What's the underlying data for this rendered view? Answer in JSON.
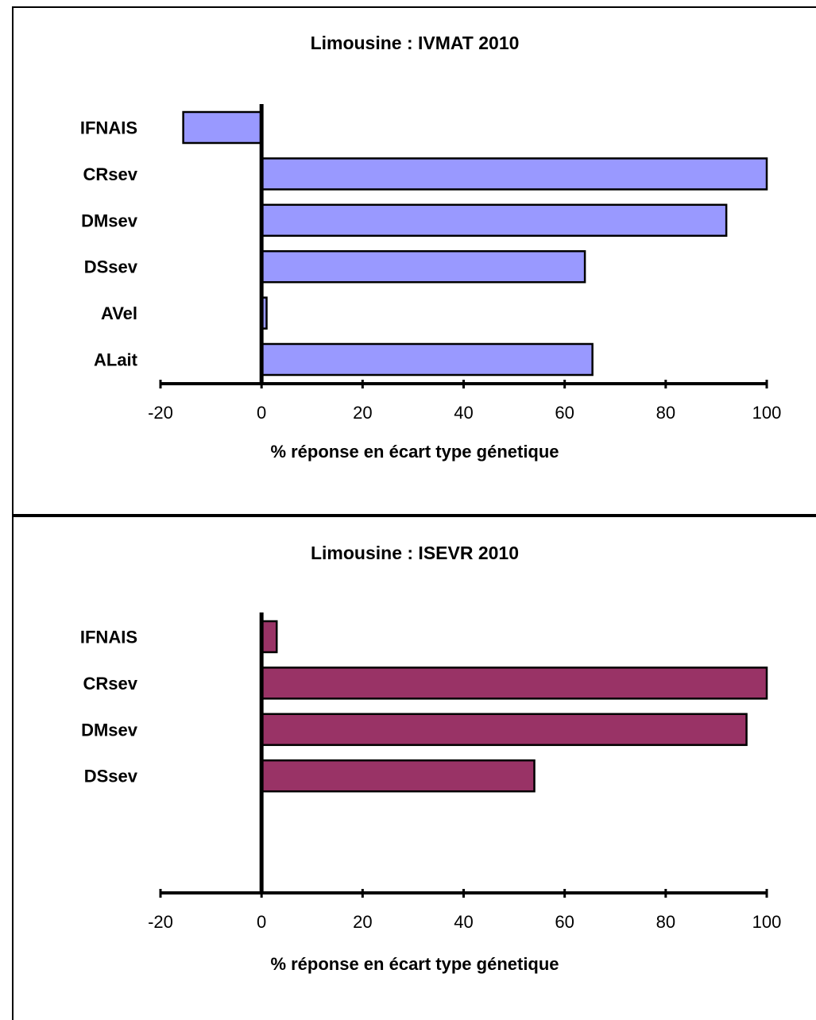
{
  "chart_data": [
    {
      "type": "bar",
      "orientation": "horizontal",
      "title": "Limousine : IVMAT 2010",
      "xlabel": "% réponse en écart type génetique",
      "ylabel": "",
      "categories": [
        "IFNAIS",
        "CRsev",
        "DMsev",
        "DSsev",
        "AVel",
        "ALait"
      ],
      "values": [
        -15.5,
        100,
        92,
        64,
        1,
        65.5
      ],
      "xlim": [
        -20,
        100
      ],
      "xticks": [
        "-20",
        "0",
        "20",
        "40",
        "60",
        "80",
        "100"
      ],
      "bar_color": "#9999ff",
      "grid": false,
      "legend": "none"
    },
    {
      "type": "bar",
      "orientation": "horizontal",
      "title": "Limousine : ISEVR 2010",
      "xlabel": "% réponse en écart type génetique",
      "ylabel": "",
      "categories": [
        "IFNAIS",
        "CRsev",
        "DMsev",
        "DSsev"
      ],
      "values": [
        3,
        100,
        96,
        54
      ],
      "xlim": [
        -20,
        100
      ],
      "xticks": [
        "-20",
        "0",
        "20",
        "40",
        "60",
        "80",
        "100"
      ],
      "bar_color": "#993366",
      "grid": false,
      "legend": "none"
    }
  ]
}
